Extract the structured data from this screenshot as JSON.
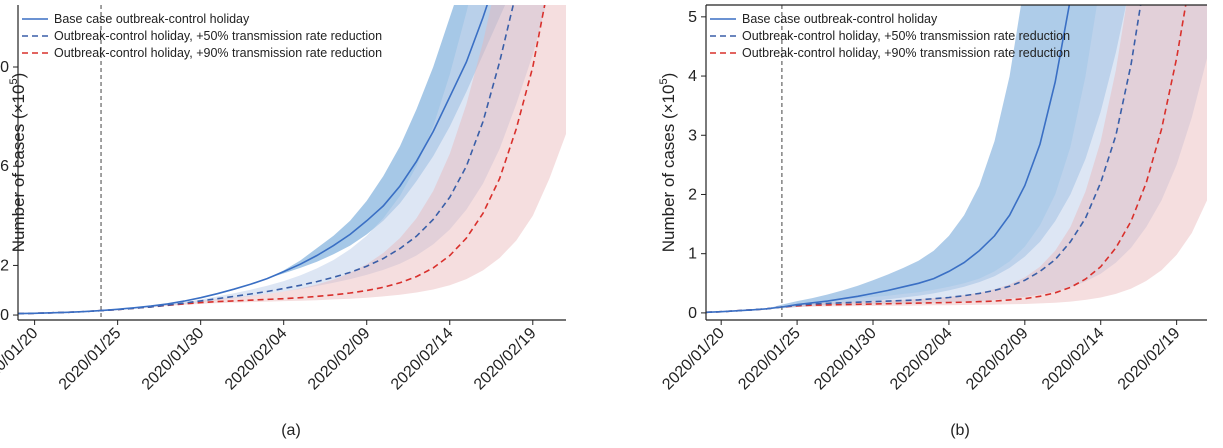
{
  "chart_data": [
    {
      "panel_label": "(a)",
      "type": "line",
      "ylabel_main": "Number of cases (×10",
      "ylabel_exp": "5",
      "ylabel_close": ")",
      "x_dates": [
        "2020/01/19",
        "2020/01/20",
        "2020/01/21",
        "2020/01/22",
        "2020/01/23",
        "2020/01/24",
        "2020/01/25",
        "2020/01/26",
        "2020/01/27",
        "2020/01/28",
        "2020/01/29",
        "2020/01/30",
        "2020/01/31",
        "2020/02/01",
        "2020/02/02",
        "2020/02/03",
        "2020/02/04",
        "2020/02/05",
        "2020/02/06",
        "2020/02/07",
        "2020/02/08",
        "2020/02/09",
        "2020/02/10",
        "2020/02/11",
        "2020/02/12",
        "2020/02/13",
        "2020/02/14",
        "2020/02/15",
        "2020/02/16",
        "2020/02/17",
        "2020/02/18",
        "2020/02/19",
        "2020/02/20",
        "2020/02/21"
      ],
      "x_ticks": [
        "2020/01/20",
        "2020/01/25",
        "2020/01/30",
        "2020/02/04",
        "2020/02/09",
        "2020/02/14",
        "2020/02/19"
      ],
      "xlim": [
        "2020/01/19",
        "2020/02/21"
      ],
      "y_ticks": [
        0,
        0.2,
        0.6,
        1.0
      ],
      "y_tick_labels": [
        "0",
        "0.2",
        "0.6",
        "1.0"
      ],
      "ylim": [
        -0.02,
        1.25
      ],
      "vline_date": "2020/01/24",
      "legend_position": "top-left",
      "series": [
        {
          "name": "Base case outbreak-control holiday",
          "color": "#3a6fc4",
          "dash": "solid",
          "band_color": "#5d9ad3",
          "band_opacity": 0.55,
          "mid": [
            0.006,
            0.007,
            0.009,
            0.011,
            0.014,
            0.018,
            0.023,
            0.029,
            0.036,
            0.045,
            0.056,
            0.07,
            0.086,
            0.104,
            0.124,
            0.147,
            0.175,
            0.205,
            0.24,
            0.28,
            0.325,
            0.38,
            0.44,
            0.52,
            0.62,
            0.74,
            0.88,
            1.02,
            1.2,
            1.4,
            1.6,
            1.8,
            2.0,
            2.2
          ],
          "lower": [
            0.006,
            0.007,
            0.009,
            0.011,
            0.014,
            0.018,
            0.023,
            0.029,
            0.036,
            0.045,
            0.056,
            0.07,
            0.086,
            0.104,
            0.124,
            0.147,
            0.168,
            0.19,
            0.215,
            0.245,
            0.28,
            0.325,
            0.38,
            0.45,
            0.54,
            0.64,
            0.76,
            0.9,
            1.05,
            1.2,
            1.35,
            1.5,
            1.65,
            1.8
          ],
          "upper": [
            0.006,
            0.007,
            0.009,
            0.011,
            0.014,
            0.018,
            0.023,
            0.029,
            0.036,
            0.045,
            0.056,
            0.07,
            0.086,
            0.104,
            0.124,
            0.147,
            0.18,
            0.22,
            0.27,
            0.32,
            0.38,
            0.46,
            0.56,
            0.68,
            0.83,
            1.0,
            1.2,
            1.4,
            1.6,
            1.8,
            2.0,
            2.2,
            2.4,
            2.6
          ]
        },
        {
          "name": "Outbreak-control holiday, +50% transmission rate reduction",
          "color": "#3a5fa8",
          "dash": "6,4",
          "band_color": "#c6d5ec",
          "band_opacity": 0.6,
          "mid": [
            0.006,
            0.007,
            0.009,
            0.011,
            0.014,
            0.018,
            0.022,
            0.027,
            0.033,
            0.04,
            0.048,
            0.057,
            0.066,
            0.075,
            0.085,
            0.095,
            0.107,
            0.12,
            0.135,
            0.152,
            0.172,
            0.197,
            0.228,
            0.268,
            0.318,
            0.385,
            0.475,
            0.6,
            0.78,
            1.02,
            1.3,
            1.6,
            1.9,
            2.2
          ],
          "lower": [
            0.006,
            0.007,
            0.009,
            0.011,
            0.014,
            0.018,
            0.022,
            0.027,
            0.032,
            0.038,
            0.045,
            0.052,
            0.06,
            0.068,
            0.076,
            0.085,
            0.095,
            0.105,
            0.117,
            0.13,
            0.145,
            0.162,
            0.182,
            0.207,
            0.24,
            0.285,
            0.345,
            0.425,
            0.53,
            0.67,
            0.85,
            1.05,
            1.3,
            1.55
          ],
          "upper": [
            0.006,
            0.007,
            0.009,
            0.011,
            0.014,
            0.018,
            0.022,
            0.027,
            0.034,
            0.042,
            0.052,
            0.063,
            0.075,
            0.088,
            0.102,
            0.118,
            0.137,
            0.16,
            0.188,
            0.222,
            0.265,
            0.32,
            0.39,
            0.48,
            0.6,
            0.76,
            0.97,
            1.22,
            1.5,
            1.8,
            2.1,
            2.4,
            2.7,
            3.0
          ]
        },
        {
          "name": "Outbreak-control holiday, +90% transmission rate reduction",
          "color": "#d9302c",
          "dash": "6,4",
          "band_color": "#e9b6b9",
          "band_opacity": 0.45,
          "mid": [
            0.006,
            0.007,
            0.009,
            0.011,
            0.014,
            0.018,
            0.022,
            0.027,
            0.033,
            0.039,
            0.045,
            0.05,
            0.054,
            0.057,
            0.06,
            0.063,
            0.066,
            0.07,
            0.075,
            0.081,
            0.089,
            0.099,
            0.112,
            0.13,
            0.155,
            0.19,
            0.24,
            0.31,
            0.41,
            0.55,
            0.75,
            1.0,
            1.35,
            1.8
          ],
          "lower": [
            0.006,
            0.007,
            0.009,
            0.011,
            0.014,
            0.018,
            0.022,
            0.027,
            0.032,
            0.037,
            0.041,
            0.045,
            0.048,
            0.05,
            0.052,
            0.054,
            0.056,
            0.058,
            0.06,
            0.063,
            0.066,
            0.07,
            0.075,
            0.082,
            0.091,
            0.103,
            0.12,
            0.145,
            0.18,
            0.23,
            0.3,
            0.4,
            0.55,
            0.73
          ],
          "upper": [
            0.006,
            0.007,
            0.009,
            0.011,
            0.014,
            0.018,
            0.022,
            0.027,
            0.034,
            0.041,
            0.049,
            0.057,
            0.064,
            0.07,
            0.077,
            0.085,
            0.095,
            0.107,
            0.123,
            0.143,
            0.17,
            0.205,
            0.25,
            0.31,
            0.39,
            0.5,
            0.65,
            0.85,
            1.1,
            1.4,
            1.75,
            2.1,
            2.5,
            3.0
          ]
        }
      ]
    },
    {
      "panel_label": "(b)",
      "type": "line",
      "ylabel_main": "Number of cases (×10",
      "ylabel_exp": "5",
      "ylabel_close": ")",
      "x_dates": [
        "2020/01/19",
        "2020/01/20",
        "2020/01/21",
        "2020/01/22",
        "2020/01/23",
        "2020/01/24",
        "2020/01/25",
        "2020/01/26",
        "2020/01/27",
        "2020/01/28",
        "2020/01/29",
        "2020/01/30",
        "2020/01/31",
        "2020/02/01",
        "2020/02/02",
        "2020/02/03",
        "2020/02/04",
        "2020/02/05",
        "2020/02/06",
        "2020/02/07",
        "2020/02/08",
        "2020/02/09",
        "2020/02/10",
        "2020/02/11",
        "2020/02/12",
        "2020/02/13",
        "2020/02/14",
        "2020/02/15",
        "2020/02/16",
        "2020/02/17",
        "2020/02/18",
        "2020/02/19",
        "2020/02/20",
        "2020/02/21"
      ],
      "x_ticks": [
        "2020/01/20",
        "2020/01/25",
        "2020/01/30",
        "2020/02/04",
        "2020/02/09",
        "2020/02/14",
        "2020/02/19"
      ],
      "xlim": [
        "2020/01/19",
        "2020/02/21"
      ],
      "y_ticks": [
        0,
        1,
        2,
        3,
        4,
        5
      ],
      "y_tick_labels": [
        "0",
        "1",
        "2",
        "3",
        "4",
        "5"
      ],
      "ylim": [
        -0.12,
        5.2
      ],
      "vline_date": "2020/01/24",
      "legend_position": "top-left",
      "series": [
        {
          "name": "Base case outbreak-control holiday",
          "color": "#3a6fc4",
          "dash": "solid",
          "band_color": "#5d9ad3",
          "band_opacity": 0.5,
          "mid": [
            0.01,
            0.02,
            0.035,
            0.05,
            0.07,
            0.1,
            0.14,
            0.17,
            0.2,
            0.24,
            0.28,
            0.33,
            0.38,
            0.44,
            0.5,
            0.58,
            0.7,
            0.85,
            1.05,
            1.3,
            1.65,
            2.15,
            2.85,
            3.9,
            5.3,
            7.0,
            9.0,
            11,
            13,
            15,
            17,
            19,
            21,
            23
          ],
          "lower": [
            0.01,
            0.02,
            0.035,
            0.05,
            0.07,
            0.08,
            0.1,
            0.12,
            0.14,
            0.16,
            0.18,
            0.2,
            0.23,
            0.26,
            0.29,
            0.33,
            0.38,
            0.44,
            0.52,
            0.62,
            0.76,
            0.95,
            1.2,
            1.55,
            2.0,
            2.6,
            3.4,
            4.4,
            5.6,
            7.0,
            8.5,
            10,
            12,
            14
          ],
          "upper": [
            0.01,
            0.02,
            0.035,
            0.05,
            0.07,
            0.14,
            0.2,
            0.25,
            0.31,
            0.38,
            0.46,
            0.55,
            0.65,
            0.76,
            0.88,
            1.05,
            1.3,
            1.65,
            2.15,
            2.9,
            4.0,
            5.6,
            7.8,
            10.5,
            14,
            18,
            22,
            26,
            30,
            34,
            38,
            42,
            46,
            50
          ]
        },
        {
          "name": "Outbreak-control holiday, +50% transmission rate reduction",
          "color": "#3a5fa8",
          "dash": "6,4",
          "band_color": "#c6d5ec",
          "band_opacity": 0.6,
          "mid": [
            0.01,
            0.02,
            0.035,
            0.05,
            0.07,
            0.1,
            0.13,
            0.15,
            0.16,
            0.17,
            0.18,
            0.19,
            0.2,
            0.21,
            0.22,
            0.24,
            0.26,
            0.29,
            0.33,
            0.38,
            0.45,
            0.55,
            0.7,
            0.9,
            1.2,
            1.6,
            2.2,
            3.0,
            4.2,
            5.8,
            7.5,
            9.5,
            12,
            15
          ],
          "lower": [
            0.01,
            0.02,
            0.035,
            0.05,
            0.07,
            0.09,
            0.11,
            0.12,
            0.13,
            0.135,
            0.14,
            0.145,
            0.15,
            0.155,
            0.16,
            0.17,
            0.18,
            0.19,
            0.2,
            0.22,
            0.24,
            0.27,
            0.31,
            0.36,
            0.43,
            0.53,
            0.66,
            0.85,
            1.1,
            1.45,
            1.9,
            2.5,
            3.3,
            4.3
          ],
          "upper": [
            0.01,
            0.02,
            0.035,
            0.05,
            0.07,
            0.12,
            0.16,
            0.19,
            0.21,
            0.23,
            0.25,
            0.27,
            0.29,
            0.32,
            0.35,
            0.39,
            0.44,
            0.5,
            0.58,
            0.7,
            0.87,
            1.12,
            1.48,
            2.0,
            2.8,
            4.0,
            5.6,
            7.6,
            10,
            13,
            16,
            19,
            22,
            25
          ]
        },
        {
          "name": "Outbreak-control holiday, +90% transmission rate reduction",
          "color": "#d9302c",
          "dash": "6,4",
          "band_color": "#e9b6b9",
          "band_opacity": 0.45,
          "mid": [
            0.01,
            0.02,
            0.035,
            0.05,
            0.07,
            0.1,
            0.12,
            0.13,
            0.135,
            0.14,
            0.145,
            0.15,
            0.155,
            0.16,
            0.165,
            0.17,
            0.175,
            0.18,
            0.19,
            0.2,
            0.22,
            0.24,
            0.28,
            0.34,
            0.43,
            0.57,
            0.78,
            1.1,
            1.55,
            2.2,
            3.1,
            4.3,
            5.8,
            7.5
          ],
          "lower": [
            0.01,
            0.02,
            0.035,
            0.05,
            0.07,
            0.09,
            0.1,
            0.105,
            0.11,
            0.112,
            0.115,
            0.118,
            0.12,
            0.122,
            0.125,
            0.128,
            0.13,
            0.133,
            0.136,
            0.14,
            0.145,
            0.15,
            0.16,
            0.17,
            0.19,
            0.22,
            0.26,
            0.32,
            0.41,
            0.54,
            0.72,
            0.98,
            1.35,
            1.9
          ],
          "upper": [
            0.01,
            0.02,
            0.035,
            0.05,
            0.07,
            0.11,
            0.14,
            0.16,
            0.17,
            0.18,
            0.19,
            0.2,
            0.21,
            0.22,
            0.235,
            0.25,
            0.27,
            0.3,
            0.34,
            0.4,
            0.48,
            0.6,
            0.78,
            1.05,
            1.45,
            2.05,
            2.9,
            4.1,
            5.7,
            7.8,
            10.3,
            13,
            16,
            19
          ]
        }
      ]
    }
  ]
}
